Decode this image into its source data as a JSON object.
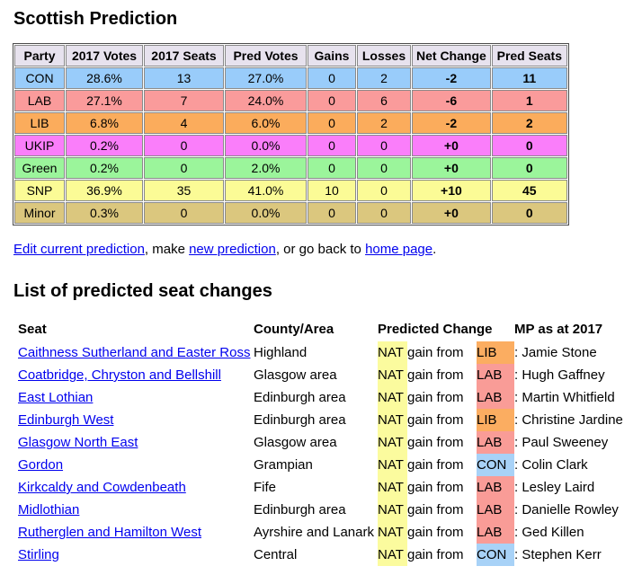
{
  "page": {
    "title": "Scottish Prediction",
    "section2_title": "List of predicted seat changes"
  },
  "prediction_table": {
    "headers": [
      "Party",
      "2017 Votes",
      "2017 Seats",
      "Pred Votes",
      "Gains",
      "Losses",
      "Net Change",
      "Pred Seats"
    ],
    "rows": [
      {
        "party": "CON",
        "votes_2017": "28.6%",
        "seats_2017": "13",
        "pred_votes": "27.0%",
        "gains": "0",
        "losses": "2",
        "net_change": "-2",
        "pred_seats": "11",
        "color": "#99ccfa"
      },
      {
        "party": "LAB",
        "votes_2017": "27.1%",
        "seats_2017": "7",
        "pred_votes": "24.0%",
        "gains": "0",
        "losses": "6",
        "net_change": "-6",
        "pred_seats": "1",
        "color": "#fa9b9b"
      },
      {
        "party": "LIB",
        "votes_2017": "6.8%",
        "seats_2017": "4",
        "pred_votes": "6.0%",
        "gains": "0",
        "losses": "2",
        "net_change": "-2",
        "pred_seats": "2",
        "color": "#fbac5c"
      },
      {
        "party": "UKIP",
        "votes_2017": "0.2%",
        "seats_2017": "0",
        "pred_votes": "0.0%",
        "gains": "0",
        "losses": "0",
        "net_change": "+0",
        "pred_seats": "0",
        "color": "#fa7efa"
      },
      {
        "party": "Green",
        "votes_2017": "0.2%",
        "seats_2017": "0",
        "pred_votes": "2.0%",
        "gains": "0",
        "losses": "0",
        "net_change": "+0",
        "pred_seats": "0",
        "color": "#9bf59b"
      },
      {
        "party": "SNP",
        "votes_2017": "36.9%",
        "seats_2017": "35",
        "pred_votes": "41.0%",
        "gains": "10",
        "losses": "0",
        "net_change": "+10",
        "pred_seats": "45",
        "color": "#fbfb96"
      },
      {
        "party": "Minor",
        "votes_2017": "0.3%",
        "seats_2017": "0",
        "pred_votes": "0.0%",
        "gains": "0",
        "losses": "0",
        "net_change": "+0",
        "pred_seats": "0",
        "color": "#dbc77e"
      }
    ]
  },
  "links_line": {
    "edit": "Edit current prediction",
    "sep1": ", make ",
    "new": "new prediction",
    "sep2": ", or go back to ",
    "home": "home page",
    "end": "."
  },
  "seat_changes": {
    "headers": {
      "seat": "Seat",
      "county": "County/Area",
      "change": "Predicted Change",
      "mp": "MP as at 2017"
    },
    "gain_text": "gain from",
    "rows": [
      {
        "seat": "Caithness Sutherland and Easter Ross",
        "county": "Highland",
        "winner": "NAT",
        "winner_color": "#fbfb9e",
        "loser": "LIB",
        "loser_color": "#fbad61",
        "mp": ": Jamie Stone"
      },
      {
        "seat": "Coatbridge, Chryston and Bellshill",
        "county": "Glasgow area",
        "winner": "NAT",
        "winner_color": "#fbfb9e",
        "loser": "LAB",
        "loser_color": "#f99c97",
        "mp": ": Hugh Gaffney"
      },
      {
        "seat": "East Lothian",
        "county": "Edinburgh area",
        "winner": "NAT",
        "winner_color": "#fbfb9e",
        "loser": "LAB",
        "loser_color": "#f99c97",
        "mp": ": Martin Whitfield"
      },
      {
        "seat": "Edinburgh West",
        "county": "Edinburgh area",
        "winner": "NAT",
        "winner_color": "#fbfb9e",
        "loser": "LIB",
        "loser_color": "#fbad61",
        "mp": ": Christine Jardine"
      },
      {
        "seat": "Glasgow North East",
        "county": "Glasgow area",
        "winner": "NAT",
        "winner_color": "#fbfb9e",
        "loser": "LAB",
        "loser_color": "#f99c97",
        "mp": ": Paul Sweeney"
      },
      {
        "seat": "Gordon",
        "county": "Grampian",
        "winner": "NAT",
        "winner_color": "#fbfb9e",
        "loser": "CON",
        "loser_color": "#a8d2f7",
        "mp": ": Colin Clark"
      },
      {
        "seat": "Kirkcaldy and Cowdenbeath",
        "county": "Fife",
        "winner": "NAT",
        "winner_color": "#fbfb9e",
        "loser": "LAB",
        "loser_color": "#f99c97",
        "mp": ": Lesley Laird"
      },
      {
        "seat": "Midlothian",
        "county": "Edinburgh area",
        "winner": "NAT",
        "winner_color": "#fbfb9e",
        "loser": "LAB",
        "loser_color": "#f99c97",
        "mp": ": Danielle Rowley"
      },
      {
        "seat": "Rutherglen and Hamilton West",
        "county": "Ayrshire and Lanark",
        "winner": "NAT",
        "winner_color": "#fbfb9e",
        "loser": "LAB",
        "loser_color": "#f99c97",
        "mp": ": Ged Killen"
      },
      {
        "seat": "Stirling",
        "county": "Central",
        "winner": "NAT",
        "winner_color": "#fbfb9e",
        "loser": "CON",
        "loser_color": "#a8d2f7",
        "mp": ": Stephen Kerr"
      }
    ]
  },
  "colors": {
    "header_bg": "#e7e2ee",
    "con": "#99ccfa",
    "lab": "#fa9b9b",
    "lib": "#fbac5c",
    "ukip": "#fa7efa",
    "green": "#9bf59b",
    "snp_nat": "#fbfb96",
    "minor": "#dbc77e",
    "link": "#0000EE"
  }
}
